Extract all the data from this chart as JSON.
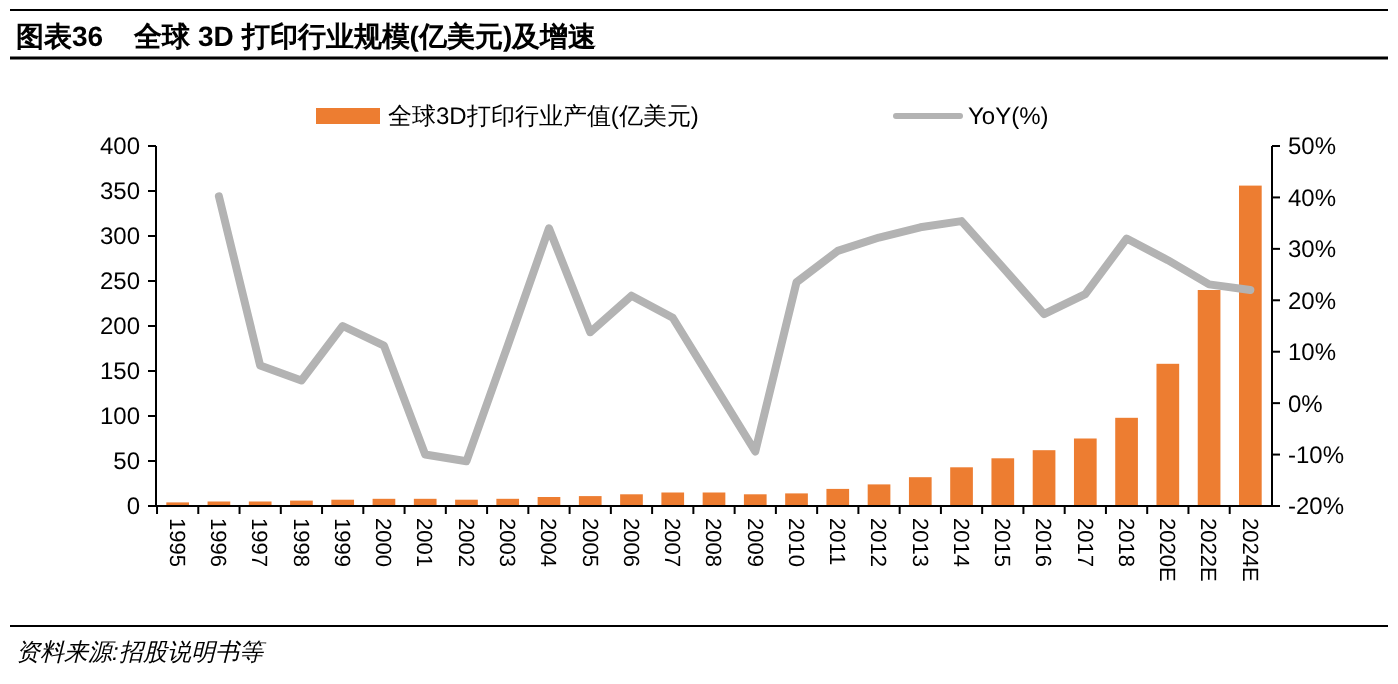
{
  "chart_data": {
    "type": "bar",
    "title": "图表36    全球 3D 打印行业规模(亿美元)及增速",
    "categories": [
      "1995",
      "1996",
      "1997",
      "1998",
      "1999",
      "2000",
      "2001",
      "2002",
      "2003",
      "2004",
      "2005",
      "2006",
      "2007",
      "2008",
      "2009",
      "2010",
      "2011",
      "2012",
      "2013",
      "2014",
      "2015",
      "2016",
      "2017",
      "2018",
      "2020E",
      "2022E",
      "2024E"
    ],
    "series": [
      {
        "name": "全球3D打印行业产值(亿美元)",
        "color": "#ed7d31",
        "values": [
          4,
          5,
          5,
          6,
          7,
          8,
          8,
          7,
          8,
          10,
          11,
          13,
          15,
          15,
          13,
          14,
          19,
          24,
          32,
          43,
          53,
          62,
          75,
          98,
          158,
          240,
          356
        ]
      },
      {
        "name": "YoY(%)",
        "type": "line",
        "axis": "y2",
        "color": "#b3b3b3",
        "values": [
          null,
          40.2,
          7.3,
          4.4,
          15,
          11.2,
          -10,
          -11.3,
          11.2,
          34,
          13.8,
          20.9,
          16.6,
          3.6,
          -9.4,
          23.5,
          29.6,
          32.2,
          34.2,
          35.4,
          26.4,
          17.3,
          21.2,
          32,
          27.8,
          23.1,
          22
        ]
      }
    ],
    "ylim": [
      0,
      400
    ],
    "yticks": [
      0,
      50,
      100,
      150,
      200,
      250,
      300,
      350,
      400
    ],
    "y2lim": [
      -20,
      50
    ],
    "y2ticks": [
      {
        "value": -20,
        "label": "-20%"
      },
      {
        "value": -10,
        "label": "-10%"
      },
      {
        "value": 0,
        "label": "0%"
      },
      {
        "value": 10,
        "label": "10%"
      },
      {
        "value": 20,
        "label": "20%"
      },
      {
        "value": 30,
        "label": "30%"
      },
      {
        "value": 40,
        "label": "40%"
      },
      {
        "value": 50,
        "label": "50%"
      }
    ],
    "grid": false,
    "legend": "top",
    "marker": "none",
    "line_style": "solid",
    "annotations": [
      "资料来源:招股说明书等"
    ]
  }
}
